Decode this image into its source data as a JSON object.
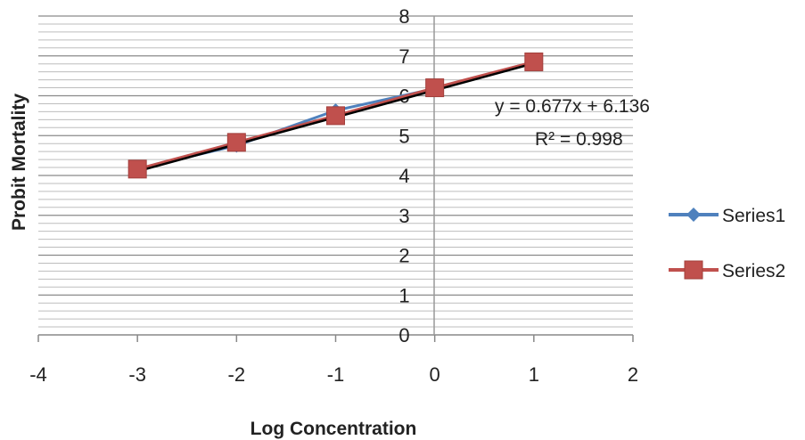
{
  "chart_data": {
    "type": "scatter",
    "xlabel": "Log Concentration",
    "ylabel": "Probit Mortality",
    "xlim": [
      -4,
      2
    ],
    "ylim": [
      0,
      8
    ],
    "x_ticks": [
      "-4",
      "-3",
      "-2",
      "-1",
      "0",
      "1",
      "2"
    ],
    "y_ticks": [
      "0",
      "1",
      "2",
      "3",
      "4",
      "5",
      "6",
      "7",
      "8"
    ],
    "grid": true,
    "legend_position": "right",
    "series": [
      {
        "name": "Series1",
        "color": "#4f81bd",
        "marker": "diamond",
        "x": [
          -3,
          -2,
          -1,
          0,
          1
        ],
        "y": [
          4.16,
          4.75,
          5.63,
          6.18,
          6.85
        ]
      },
      {
        "name": "Series2",
        "color": "#c0504d",
        "marker": "square",
        "x": [
          -3,
          -2,
          -1,
          0,
          1
        ],
        "y": [
          4.16,
          4.83,
          5.5,
          6.2,
          6.85
        ]
      }
    ],
    "trendline": {
      "slope": 0.677,
      "intercept": 6.136,
      "x_range": [
        -3,
        1
      ],
      "color": "#000000"
    },
    "annotations": {
      "equation": "y = 0.677x + 6.136",
      "r_squared": "R² = 0.998"
    }
  }
}
